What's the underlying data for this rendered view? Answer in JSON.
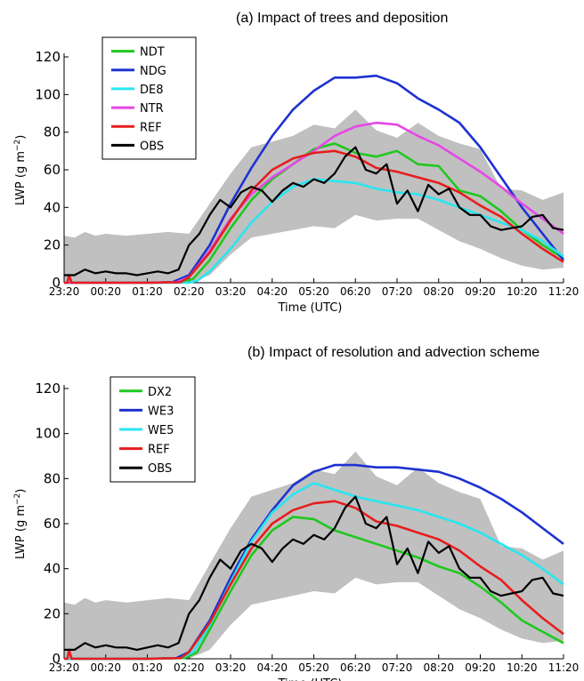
{
  "chart_data": [
    {
      "type": "line",
      "title": "(a) Impact of trees and deposition",
      "xlabel": "Time (UTC)",
      "ylabel": "LWP (g m⁻²)",
      "ylabel_main": "LWP (g m",
      "ylabel_sup": "−2",
      "ylabel_close": ")",
      "ylim": [
        0,
        120
      ],
      "xlim": [
        0,
        12
      ],
      "yticks": [
        0,
        20,
        40,
        60,
        80,
        100,
        120
      ],
      "xtick_labels": [
        "23:20",
        "00:20",
        "01:20",
        "02:20",
        "03:20",
        "04:20",
        "05:20",
        "06:20",
        "07:20",
        "08:20",
        "09:20",
        "10:20",
        "11:20"
      ],
      "legend_position": "top-left",
      "obs_range": {
        "x": [
          0,
          0.25,
          0.5,
          0.75,
          1,
          1.5,
          2,
          2.5,
          3,
          3.5,
          4,
          4.5,
          5,
          5.5,
          6,
          6.5,
          7,
          7.5,
          8,
          8.5,
          9,
          9.5,
          10,
          10.5,
          11,
          11.5,
          12
        ],
        "upper": [
          25,
          24,
          27,
          25,
          26,
          25,
          26,
          27,
          26,
          42,
          58,
          72,
          75,
          78,
          84,
          82,
          92,
          81,
          77,
          85,
          78,
          74,
          71,
          50,
          49,
          44,
          48
        ],
        "lower": [
          0,
          0,
          0,
          0,
          0,
          0,
          0,
          0,
          0,
          4,
          15,
          24,
          26,
          28,
          30,
          29,
          36,
          33,
          34,
          34,
          28,
          22,
          18,
          13,
          9,
          7,
          8
        ]
      },
      "series": [
        {
          "name": "NDT",
          "color": "#1ec81e",
          "x": [
            0,
            1,
            2,
            2.8,
            3.1,
            3.5,
            4,
            4.5,
            5,
            5.5,
            6,
            6.5,
            7,
            7.5,
            8,
            8.5,
            9,
            9.5,
            10,
            10.5,
            11,
            11.5,
            12
          ],
          "y": [
            0,
            0,
            0,
            0.3,
            2,
            12,
            29,
            44,
            55,
            63,
            71,
            74,
            69,
            67,
            70,
            63,
            62,
            49,
            46,
            38,
            28,
            20,
            13
          ]
        },
        {
          "name": "NDG",
          "color": "#1e32d2",
          "x": [
            0,
            1,
            2,
            2.6,
            3,
            3.5,
            4,
            4.5,
            5,
            5.5,
            6,
            6.5,
            7,
            7.5,
            8,
            8.5,
            9,
            9.5,
            10,
            10.5,
            11,
            11.5,
            12
          ],
          "y": [
            0,
            0,
            0,
            0.3,
            4,
            20,
            42,
            61,
            78,
            92,
            102,
            109,
            109,
            110,
            106,
            98,
            92,
            85,
            72,
            56,
            40,
            26,
            12
          ]
        },
        {
          "name": "DE8",
          "color": "#28e6f0",
          "x": [
            0,
            1,
            2,
            3,
            3.2,
            3.5,
            4,
            4.5,
            5,
            5.5,
            6,
            6.5,
            7,
            7.5,
            8,
            8.5,
            9,
            9.5,
            10,
            10.5,
            11,
            11.5,
            12
          ],
          "y": [
            0,
            0,
            0,
            0,
            1,
            6,
            18,
            32,
            43,
            51,
            55,
            54,
            53,
            50,
            48,
            47,
            44,
            40,
            36,
            32,
            28,
            22,
            14
          ]
        },
        {
          "name": "NTR",
          "color": "#e646e6",
          "x": [
            0,
            1,
            2,
            2.7,
            3,
            3.5,
            4,
            4.5,
            5,
            5.5,
            6,
            6.5,
            7,
            7.5,
            8,
            8.5,
            9,
            9.5,
            10,
            10.5,
            11,
            11.5,
            12
          ],
          "y": [
            0,
            0,
            0,
            0.3,
            3,
            17,
            34,
            47,
            56,
            63,
            70,
            78,
            83,
            85,
            84,
            78,
            73,
            66,
            59,
            51,
            42,
            34,
            26
          ]
        },
        {
          "name": "REF",
          "color": "#e61e1e",
          "x": [
            0,
            0.08,
            0.12,
            0.18,
            1,
            2,
            2.8,
            3,
            3.5,
            4,
            4.5,
            5,
            5.5,
            6,
            6.5,
            7,
            7.5,
            8,
            8.5,
            9,
            9.5,
            10,
            10.5,
            11,
            11.5,
            12
          ],
          "y": [
            0,
            0,
            4,
            0,
            0,
            0,
            0.3,
            3,
            16,
            33,
            49,
            60,
            66,
            69,
            70,
            67,
            61,
            59,
            56,
            53,
            48,
            41,
            35,
            26,
            18,
            11
          ]
        },
        {
          "name": "OBS",
          "color": "#000000",
          "x": [
            0,
            0.25,
            0.5,
            0.75,
            1,
            1.25,
            1.5,
            1.75,
            2,
            2.25,
            2.5,
            2.75,
            3,
            3.25,
            3.5,
            3.75,
            4,
            4.25,
            4.5,
            4.75,
            5,
            5.25,
            5.5,
            5.75,
            6,
            6.25,
            6.5,
            6.75,
            7,
            7.25,
            7.5,
            7.75,
            8,
            8.25,
            8.5,
            8.75,
            9,
            9.25,
            9.5,
            9.75,
            10,
            10.25,
            10.5,
            10.75,
            11,
            11.25,
            11.5,
            11.75,
            12
          ],
          "y": [
            4,
            4,
            7,
            5,
            6,
            5,
            5,
            4,
            5,
            6,
            5,
            7,
            20,
            26,
            36,
            44,
            40,
            48,
            51,
            49,
            43,
            49,
            53,
            51,
            55,
            53,
            58,
            67,
            72,
            60,
            58,
            63,
            42,
            49,
            38,
            52,
            47,
            50,
            40,
            36,
            36,
            30,
            28,
            29,
            30,
            35,
            36,
            29,
            28
          ]
        }
      ]
    },
    {
      "type": "line",
      "title": "(b) Impact of resolution and advection scheme",
      "xlabel": "Time (UTC)",
      "ylabel": "LWP (g m⁻²)",
      "ylabel_main": "LWP (g m",
      "ylabel_sup": "−2",
      "ylabel_close": ")",
      "ylim": [
        0,
        120
      ],
      "xlim": [
        0,
        12
      ],
      "yticks": [
        0,
        20,
        40,
        60,
        80,
        100,
        120
      ],
      "xtick_labels": [
        "23:20",
        "00:20",
        "01:20",
        "02:20",
        "03:20",
        "04:20",
        "05:20",
        "06:20",
        "07:20",
        "08:20",
        "09:20",
        "10:20",
        "11:20"
      ],
      "legend_position": "top-left",
      "obs_range": {
        "x": [
          0,
          0.25,
          0.5,
          0.75,
          1,
          1.5,
          2,
          2.5,
          3,
          3.5,
          4,
          4.5,
          5,
          5.5,
          6,
          6.5,
          7,
          7.5,
          8,
          8.5,
          9,
          9.5,
          10,
          10.5,
          11,
          11.5,
          12
        ],
        "upper": [
          25,
          24,
          27,
          25,
          26,
          25,
          26,
          27,
          26,
          42,
          58,
          72,
          75,
          78,
          84,
          82,
          92,
          81,
          77,
          85,
          78,
          74,
          71,
          50,
          49,
          44,
          48
        ],
        "lower": [
          0,
          0,
          0,
          0,
          0,
          0,
          0,
          0,
          0,
          4,
          15,
          24,
          26,
          28,
          30,
          29,
          36,
          33,
          34,
          34,
          28,
          22,
          18,
          13,
          9,
          7,
          8
        ]
      },
      "series": [
        {
          "name": "DX2",
          "color": "#1ec81e",
          "x": [
            0,
            1,
            2,
            2.9,
            3.2,
            3.5,
            4,
            4.5,
            5,
            5.5,
            6,
            6.5,
            7,
            7.5,
            8,
            8.5,
            9,
            9.5,
            10,
            10.5,
            11,
            11.5,
            12
          ],
          "y": [
            0,
            0,
            0,
            0.3,
            3,
            13,
            30,
            46,
            57,
            63,
            62,
            57,
            54,
            51,
            48,
            45,
            41,
            38,
            32,
            25,
            17,
            12,
            7
          ]
        },
        {
          "name": "WE3",
          "color": "#1e32d2",
          "x": [
            0,
            1,
            2,
            2.7,
            3,
            3.5,
            4,
            4.5,
            5,
            5.5,
            6,
            6.5,
            7,
            7.5,
            8,
            8.5,
            9,
            9.5,
            10,
            10.5,
            11,
            11.5,
            12
          ],
          "y": [
            0,
            0,
            0,
            0.3,
            3,
            17,
            36,
            53,
            66,
            77,
            83,
            86,
            86,
            85,
            85,
            84,
            83,
            80,
            76,
            71,
            65,
            58,
            51
          ]
        },
        {
          "name": "WE5",
          "color": "#28e6f0",
          "x": [
            0,
            1,
            2,
            2.8,
            3.1,
            3.5,
            4,
            4.5,
            5,
            5.5,
            6,
            6.5,
            7,
            7.5,
            8,
            8.5,
            9,
            9.5,
            10,
            10.5,
            11,
            11.5,
            12
          ],
          "y": [
            0,
            0,
            0,
            0.3,
            3,
            15,
            34,
            52,
            65,
            73,
            78,
            75,
            72,
            70,
            68,
            66,
            63,
            60,
            56,
            51,
            46,
            40,
            33
          ]
        },
        {
          "name": "REF",
          "color": "#e61e1e",
          "x": [
            0,
            0.08,
            0.12,
            0.18,
            1,
            2,
            2.8,
            3,
            3.5,
            4,
            4.5,
            5,
            5.5,
            6,
            6.5,
            7,
            7.5,
            8,
            8.5,
            9,
            9.5,
            10,
            10.5,
            11,
            11.5,
            12
          ],
          "y": [
            0,
            0,
            4,
            0,
            0,
            0,
            0.3,
            3,
            16,
            33,
            49,
            60,
            66,
            69,
            70,
            67,
            61,
            59,
            56,
            53,
            48,
            41,
            35,
            26,
            18,
            11
          ]
        },
        {
          "name": "OBS",
          "color": "#000000",
          "x": [
            0,
            0.25,
            0.5,
            0.75,
            1,
            1.25,
            1.5,
            1.75,
            2,
            2.25,
            2.5,
            2.75,
            3,
            3.25,
            3.5,
            3.75,
            4,
            4.25,
            4.5,
            4.75,
            5,
            5.25,
            5.5,
            5.75,
            6,
            6.25,
            6.5,
            6.75,
            7,
            7.25,
            7.5,
            7.75,
            8,
            8.25,
            8.5,
            8.75,
            9,
            9.25,
            9.5,
            9.75,
            10,
            10.25,
            10.5,
            10.75,
            11,
            11.25,
            11.5,
            11.75,
            12
          ],
          "y": [
            4,
            4,
            7,
            5,
            6,
            5,
            5,
            4,
            5,
            6,
            5,
            7,
            20,
            26,
            36,
            44,
            40,
            48,
            51,
            49,
            43,
            49,
            53,
            51,
            55,
            53,
            58,
            67,
            72,
            60,
            58,
            63,
            42,
            49,
            38,
            52,
            47,
            50,
            40,
            36,
            36,
            30,
            28,
            29,
            30,
            35,
            36,
            29,
            28
          ]
        }
      ]
    }
  ]
}
